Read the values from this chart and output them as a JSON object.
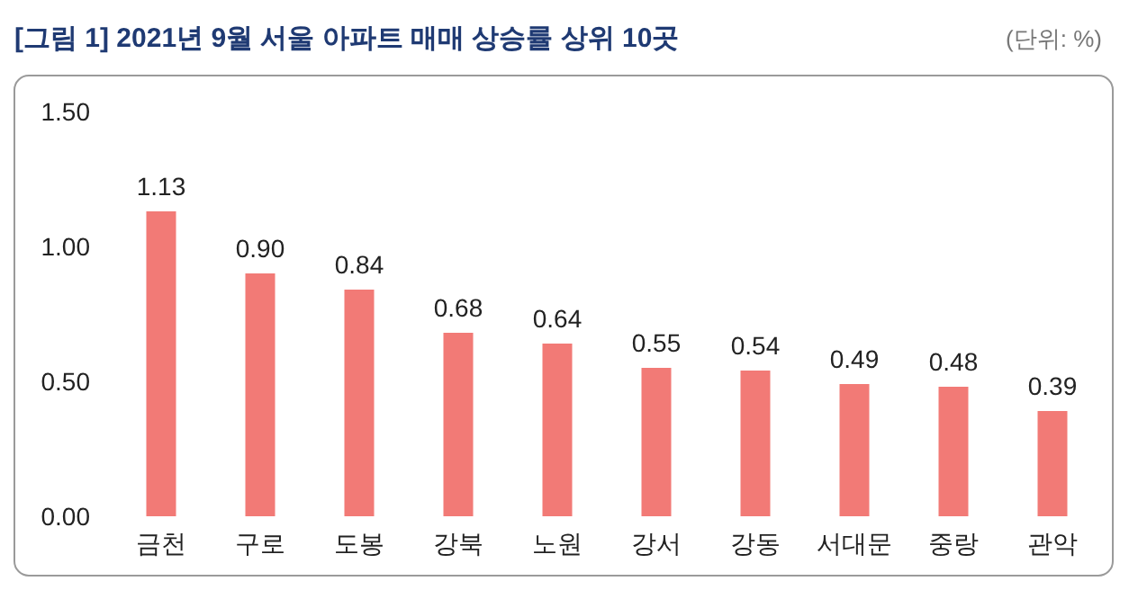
{
  "chart_data": {
    "type": "bar",
    "title": "[그림 1] 2021년 9월 서울 아파트 매매 상승률 상위 10곳",
    "annotations": [
      "(단위: %)"
    ],
    "categories": [
      "금천",
      "구로",
      "도봉",
      "강북",
      "노원",
      "강서",
      "강동",
      "서대문",
      "중랑",
      "관악"
    ],
    "values": [
      1.13,
      0.9,
      0.84,
      0.68,
      0.64,
      0.55,
      0.54,
      0.49,
      0.48,
      0.39
    ],
    "value_labels": [
      "1.13",
      "0.90",
      "0.84",
      "0.68",
      "0.64",
      "0.55",
      "0.54",
      "0.49",
      "0.48",
      "0.39"
    ],
    "color": "#f27a76",
    "ylim": [
      0,
      1.5
    ],
    "yticks": [
      {
        "value": 0,
        "label": "0.00"
      },
      {
        "value": 0.5,
        "label": "0.50"
      },
      {
        "value": 1,
        "label": "1.00"
      },
      {
        "value": 1.5,
        "label": "1.50"
      }
    ],
    "grid": false
  }
}
